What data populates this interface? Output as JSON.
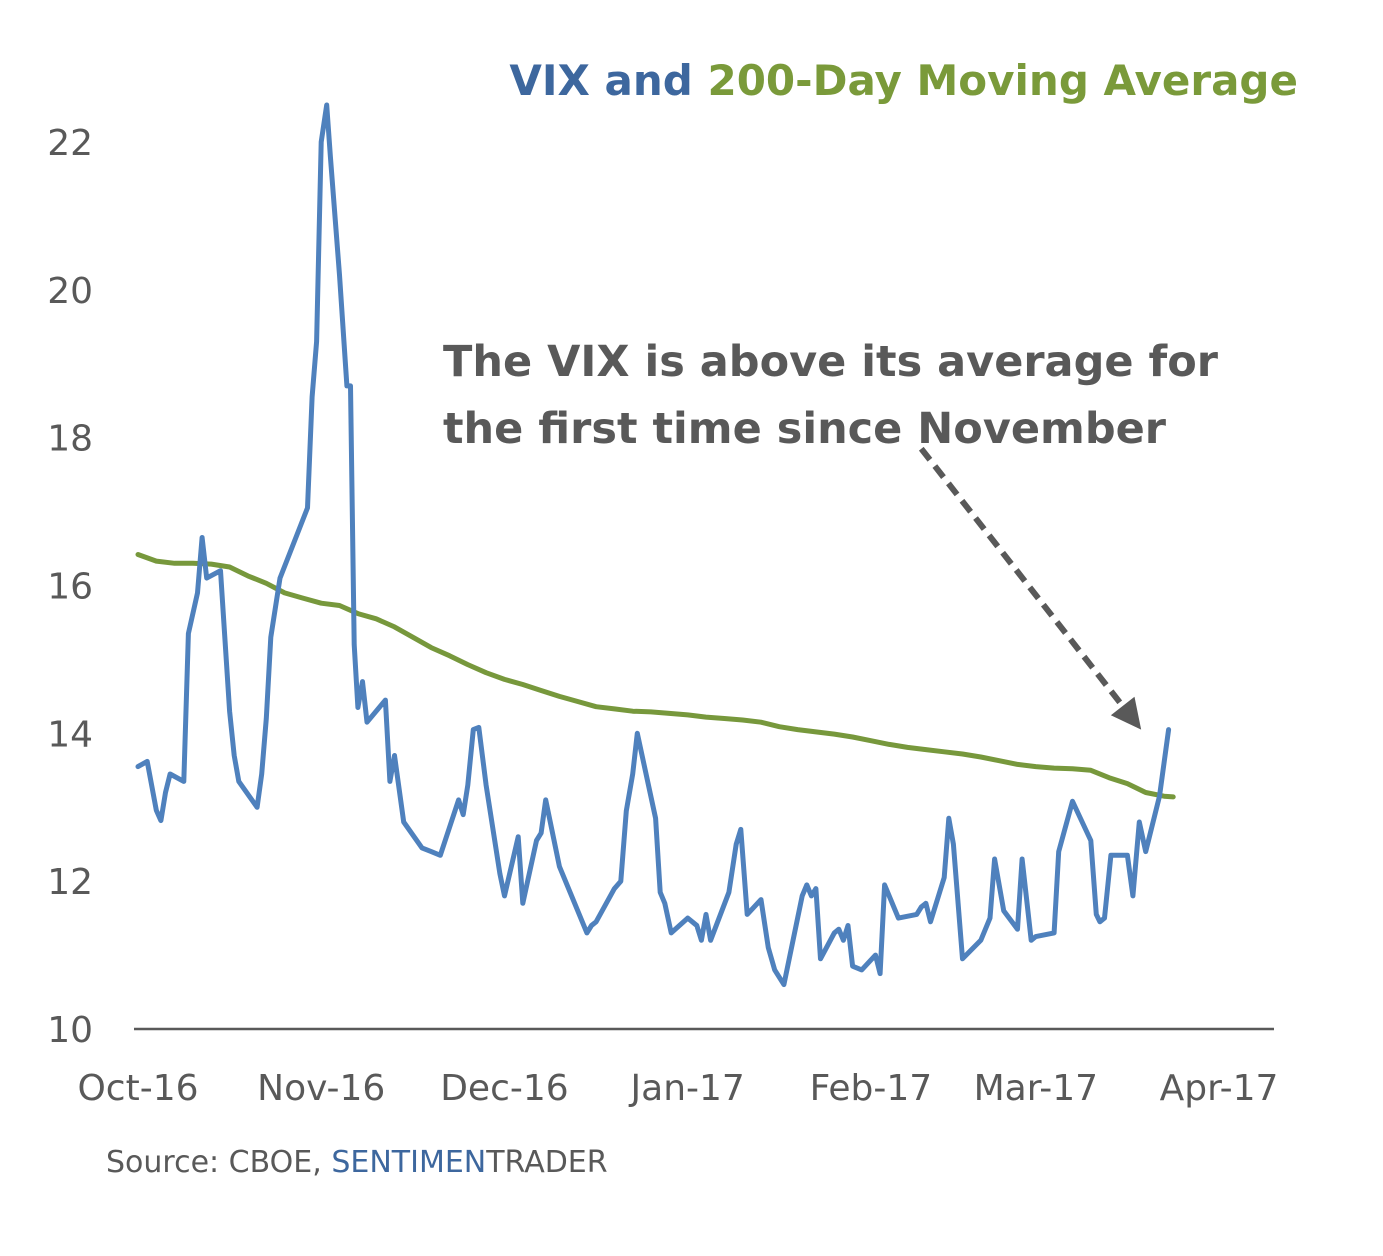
{
  "chart_data": {
    "type": "line",
    "title_parts": [
      {
        "text": "VIX and ",
        "color": "#3d679e"
      },
      {
        "text": "200-Day Moving Average",
        "color": "#7a9a3a"
      }
    ],
    "y_ticks": [
      "10",
      "12",
      "14",
      "16",
      "18",
      "20",
      "22"
    ],
    "ylim": [
      10,
      22.5
    ],
    "x_ticks": [
      {
        "label": "Oct-16",
        "x": 0
      },
      {
        "label": "Nov-16",
        "x": 20
      },
      {
        "label": "Dec-16",
        "x": 40
      },
      {
        "label": "Jan-17",
        "x": 60
      },
      {
        "label": "Feb-17",
        "x": 80
      },
      {
        "label": "Mar-17",
        "x": 98
      },
      {
        "label": "Apr-17",
        "x": 118
      }
    ],
    "xlim": [
      0,
      124
    ],
    "grid": false,
    "series": [
      {
        "color": "#4f81bd",
        "points": [
          [
            0,
            13.55
          ],
          [
            1,
            13.62
          ],
          [
            2,
            12.96
          ],
          [
            2.5,
            12.82
          ],
          [
            3,
            13.2
          ],
          [
            3.5,
            13.45
          ],
          [
            5,
            13.35
          ],
          [
            5.5,
            15.35
          ],
          [
            6.5,
            15.9
          ],
          [
            7,
            16.65
          ],
          [
            7.5,
            16.1
          ],
          [
            9,
            16.2
          ],
          [
            10,
            14.3
          ],
          [
            10.5,
            13.7
          ],
          [
            11,
            13.35
          ],
          [
            13,
            13.0
          ],
          [
            13.5,
            13.45
          ],
          [
            14,
            14.2
          ],
          [
            14.5,
            15.3
          ],
          [
            15.5,
            16.1
          ],
          [
            18.5,
            17.05
          ],
          [
            19,
            18.55
          ],
          [
            19.5,
            19.3
          ],
          [
            20,
            22.0
          ],
          [
            20.6,
            22.5
          ],
          [
            21,
            21.8
          ],
          [
            22,
            20.2
          ],
          [
            22.8,
            18.7
          ],
          [
            23.2,
            18.7
          ],
          [
            23.6,
            15.2
          ],
          [
            24,
            14.35
          ],
          [
            24.5,
            14.7
          ],
          [
            25,
            14.15
          ],
          [
            27,
            14.45
          ],
          [
            27.5,
            13.35
          ],
          [
            28,
            13.7
          ],
          [
            29,
            12.8
          ],
          [
            31,
            12.45
          ],
          [
            32,
            12.4
          ],
          [
            33,
            12.35
          ],
          [
            35,
            13.1
          ],
          [
            35.5,
            12.9
          ],
          [
            36,
            13.3
          ],
          [
            36.6,
            14.05
          ],
          [
            37.2,
            14.08
          ],
          [
            38,
            13.3
          ],
          [
            39.5,
            12.1
          ],
          [
            40,
            11.8
          ],
          [
            41.5,
            12.6
          ],
          [
            42,
            11.7
          ],
          [
            43.5,
            12.55
          ],
          [
            44,
            12.65
          ],
          [
            44.5,
            13.1
          ],
          [
            46,
            12.2
          ],
          [
            48,
            11.6
          ],
          [
            49,
            11.3
          ],
          [
            49.5,
            11.4
          ],
          [
            50,
            11.45
          ],
          [
            52,
            11.9
          ],
          [
            52.7,
            12.0
          ],
          [
            53.3,
            12.95
          ],
          [
            54,
            13.45
          ],
          [
            54.5,
            14.0
          ],
          [
            56.5,
            12.85
          ],
          [
            57,
            11.85
          ],
          [
            57.5,
            11.7
          ],
          [
            58.2,
            11.3
          ],
          [
            60,
            11.5
          ],
          [
            61,
            11.4
          ],
          [
            61.5,
            11.2
          ],
          [
            62,
            11.55
          ],
          [
            62.5,
            11.2
          ],
          [
            64.5,
            11.85
          ],
          [
            65.3,
            12.5
          ],
          [
            65.8,
            12.7
          ],
          [
            66.5,
            11.55
          ],
          [
            68,
            11.75
          ],
          [
            68.8,
            11.1
          ],
          [
            69.5,
            10.8
          ],
          [
            70.5,
            10.6
          ],
          [
            72.5,
            11.8
          ],
          [
            73,
            11.95
          ],
          [
            73.5,
            11.8
          ],
          [
            74,
            11.9
          ],
          [
            74.5,
            10.95
          ],
          [
            76,
            11.3
          ],
          [
            76.5,
            11.35
          ],
          [
            77,
            11.2
          ],
          [
            77.5,
            11.4
          ],
          [
            78,
            10.85
          ],
          [
            79,
            10.8
          ],
          [
            80.5,
            11.0
          ],
          [
            81,
            10.75
          ],
          [
            81.5,
            11.95
          ],
          [
            83,
            11.5
          ],
          [
            85,
            11.55
          ],
          [
            85.5,
            11.65
          ],
          [
            86,
            11.7
          ],
          [
            86.5,
            11.45
          ],
          [
            88,
            12.05
          ],
          [
            88.5,
            12.85
          ],
          [
            89,
            12.5
          ],
          [
            90,
            10.95
          ],
          [
            92,
            11.2
          ],
          [
            93,
            11.5
          ],
          [
            93.5,
            12.3
          ],
          [
            94.5,
            11.6
          ],
          [
            96,
            11.35
          ],
          [
            96.5,
            12.3
          ],
          [
            97.5,
            11.2
          ],
          [
            98,
            11.25
          ],
          [
            100,
            11.3
          ],
          [
            100.5,
            12.4
          ],
          [
            102,
            13.08
          ],
          [
            104,
            12.55
          ],
          [
            104.6,
            11.55
          ],
          [
            105,
            11.45
          ],
          [
            105.5,
            11.5
          ],
          [
            106.2,
            12.35
          ],
          [
            108,
            12.35
          ],
          [
            108.6,
            11.8
          ],
          [
            109.3,
            12.8
          ],
          [
            110,
            12.4
          ],
          [
            111.5,
            13.15
          ],
          [
            112.5,
            14.05
          ]
        ]
      },
      {
        "color": "#77983c",
        "points": [
          [
            0,
            16.42
          ],
          [
            2,
            16.33
          ],
          [
            4,
            16.3
          ],
          [
            6,
            16.3
          ],
          [
            8,
            16.29
          ],
          [
            10,
            16.25
          ],
          [
            12,
            16.13
          ],
          [
            14,
            16.03
          ],
          [
            16,
            15.9
          ],
          [
            18,
            15.83
          ],
          [
            20,
            15.76
          ],
          [
            22,
            15.73
          ],
          [
            24,
            15.62
          ],
          [
            26,
            15.55
          ],
          [
            28,
            15.44
          ],
          [
            30,
            15.3
          ],
          [
            32,
            15.16
          ],
          [
            34,
            15.05
          ],
          [
            36,
            14.93
          ],
          [
            38,
            14.82
          ],
          [
            40,
            14.73
          ],
          [
            42,
            14.66
          ],
          [
            44,
            14.58
          ],
          [
            46,
            14.5
          ],
          [
            48,
            14.43
          ],
          [
            50,
            14.36
          ],
          [
            52,
            14.33
          ],
          [
            54,
            14.3
          ],
          [
            56,
            14.29
          ],
          [
            58,
            14.27
          ],
          [
            60,
            14.25
          ],
          [
            62,
            14.22
          ],
          [
            64,
            14.2
          ],
          [
            66,
            14.18
          ],
          [
            68,
            14.15
          ],
          [
            70,
            14.09
          ],
          [
            72,
            14.05
          ],
          [
            74,
            14.02
          ],
          [
            76,
            13.99
          ],
          [
            78,
            13.95
          ],
          [
            80,
            13.9
          ],
          [
            82,
            13.85
          ],
          [
            84,
            13.81
          ],
          [
            86,
            13.78
          ],
          [
            88,
            13.75
          ],
          [
            90,
            13.72
          ],
          [
            92,
            13.68
          ],
          [
            94,
            13.63
          ],
          [
            96,
            13.58
          ],
          [
            98,
            13.55
          ],
          [
            100,
            13.53
          ],
          [
            102,
            13.52
          ],
          [
            104,
            13.5
          ],
          [
            106,
            13.4
          ],
          [
            108,
            13.32
          ],
          [
            110,
            13.2
          ],
          [
            112,
            13.15
          ],
          [
            113,
            13.14
          ]
        ]
      }
    ],
    "annotation": {
      "lines": [
        "The VIX is above its average for",
        "the first time since November"
      ],
      "arrow_from": [
        85.5,
        17.85
      ],
      "arrow_to": [
        109.5,
        14.05
      ]
    },
    "source_parts": [
      {
        "text": "Source: CBOE, ",
        "color": "#595959"
      },
      {
        "text": "SENTIMEN",
        "color": "#3d679e"
      },
      {
        "text": "TRADER",
        "color": "#595959"
      }
    ]
  }
}
